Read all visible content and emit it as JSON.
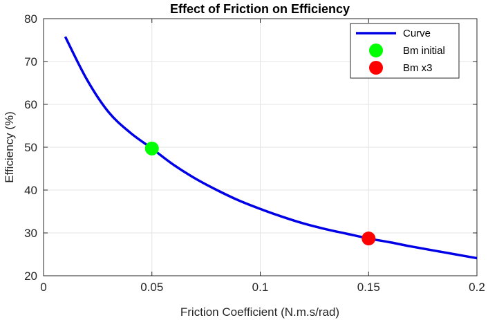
{
  "chart_data": {
    "type": "line",
    "title": "Effect of Friction on Efficiency",
    "xlabel": "Friction Coefficient (N.m.s/rad)",
    "ylabel": "Efficiency (%)",
    "xlim": [
      0,
      0.2
    ],
    "ylim": [
      20,
      80
    ],
    "xticks": [
      0,
      0.05,
      0.1,
      0.15,
      0.2
    ],
    "xtick_labels": [
      "0",
      "0.05",
      "0.1",
      "0.15",
      "0.2"
    ],
    "yticks": [
      20,
      30,
      40,
      50,
      60,
      70,
      80
    ],
    "ytick_labels": [
      "20",
      "30",
      "40",
      "50",
      "60",
      "70",
      "80"
    ],
    "grid": true,
    "legend_position": "top-right",
    "series": [
      {
        "name": "Curve",
        "kind": "line",
        "color": "#0000e6",
        "x": [
          0.01,
          0.02,
          0.03,
          0.04,
          0.05,
          0.06,
          0.07,
          0.08,
          0.09,
          0.1,
          0.11,
          0.12,
          0.13,
          0.14,
          0.15,
          0.16,
          0.17,
          0.18,
          0.19,
          0.2
        ],
        "y": [
          75.8,
          65.8,
          58.2,
          53.4,
          49.7,
          45.9,
          42.7,
          40.0,
          37.6,
          35.6,
          33.8,
          32.2,
          30.9,
          29.8,
          28.7,
          27.8,
          26.8,
          25.9,
          25.0,
          24.1
        ]
      },
      {
        "name": "Bm initial",
        "kind": "marker",
        "color": "#00ff00",
        "x": [
          0.05
        ],
        "y": [
          49.7
        ]
      },
      {
        "name": "Bm x3",
        "kind": "marker",
        "color": "#ff0000",
        "x": [
          0.15
        ],
        "y": [
          28.7
        ]
      }
    ]
  }
}
